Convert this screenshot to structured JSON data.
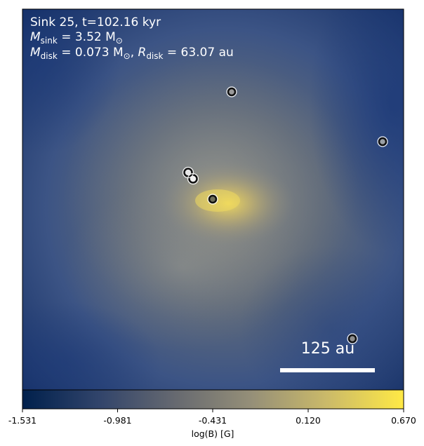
{
  "annotation": {
    "line1": "Sink 25, t=102.16 kyr",
    "line2_prefix": "M",
    "line2_sub": "sink",
    "line2_value": " = 3.52 M",
    "line3_prefix": "M",
    "line3_sub": "disk",
    "line3_value": " = 0.073 M",
    "line3_sep": ", ",
    "line3_r": "R",
    "line3_rsub": "disk",
    "line3_rvalue": " = 63.07 au",
    "sun_symbol": "⊙"
  },
  "scale_bar": {
    "label": "125 au"
  },
  "colorbar": {
    "label": "log(B) [G]",
    "ticks": [
      "-1.531",
      "-0.981",
      "-0.431",
      "0.120",
      "0.670"
    ],
    "min": -1.531,
    "max": 0.67,
    "colors": [
      "#00204c",
      "#31446b",
      "#666970",
      "#958f78",
      "#cbba69",
      "#ffe945"
    ]
  },
  "sinks": [
    {
      "name": "sink-a",
      "fill": "#9a9a9a"
    },
    {
      "name": "sink-b",
      "fill": "#9aa0a6"
    },
    {
      "name": "sink-c",
      "fill": "#e6e6e6"
    },
    {
      "name": "sink-d",
      "fill": "#f2f2f2"
    },
    {
      "name": "sink-e",
      "fill": "#6f6f5a"
    },
    {
      "name": "sink-f",
      "fill": "#8c8c8c"
    }
  ]
}
